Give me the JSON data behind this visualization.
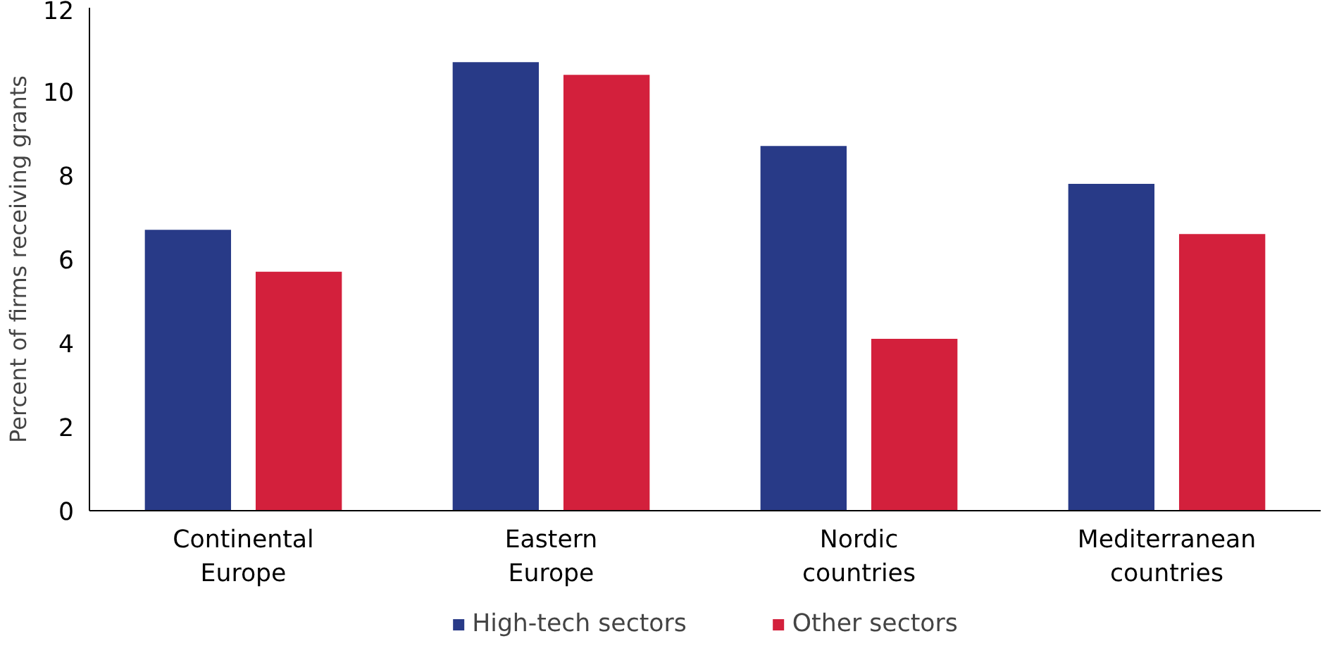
{
  "chart_data": {
    "type": "bar",
    "ylabel": "Percent of firms receiving grants",
    "categories": [
      "Continental\nEurope",
      "Eastern\nEurope",
      "Nordic\ncountries",
      "Mediterranean\ncountries"
    ],
    "series": [
      {
        "name": "High-tech sectors",
        "color": "#283a87",
        "values": [
          6.7,
          10.7,
          8.7,
          7.8
        ]
      },
      {
        "name": "Other sectors",
        "color": "#d3203c",
        "values": [
          5.7,
          10.4,
          4.1,
          6.6
        ]
      }
    ],
    "ylim": [
      0,
      12
    ],
    "yticks": [
      0,
      2,
      4,
      6,
      8,
      10,
      12
    ],
    "grid": false,
    "legend": "bottom"
  }
}
